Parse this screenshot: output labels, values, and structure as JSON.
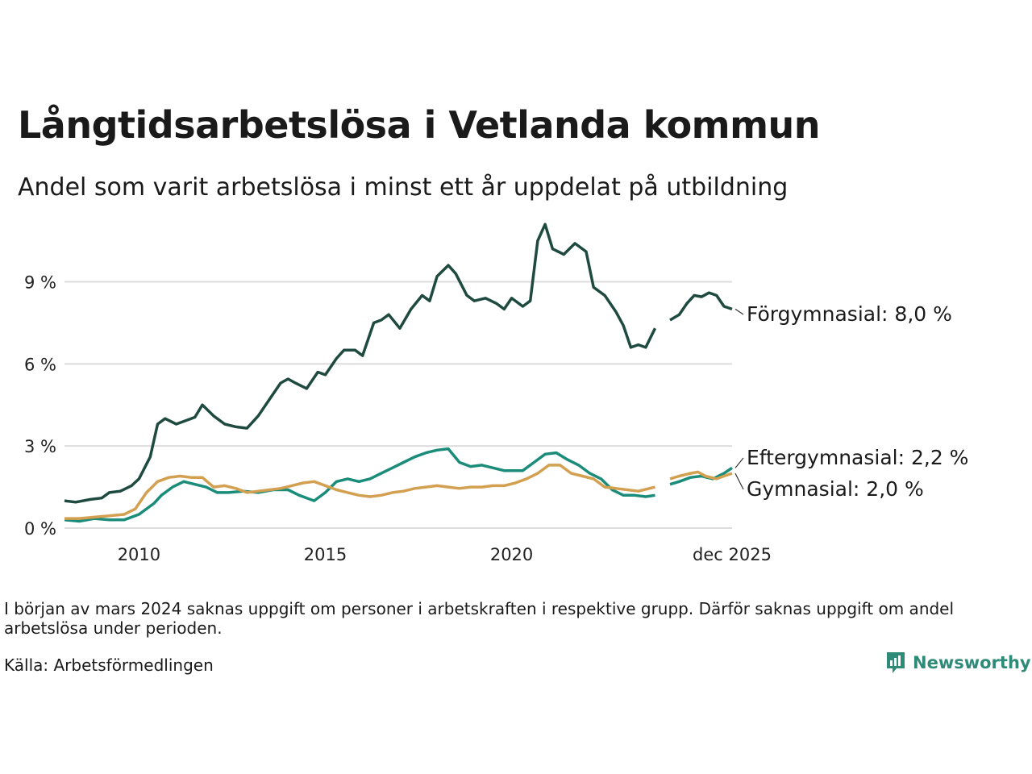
{
  "title": "Långtidsarbetslösa i Vetlanda kommun",
  "subtitle": "Andel som varit arbetslösa i minst ett år uppdelat på utbildning",
  "note": "I början av mars 2024 saknas uppgift om personer i arbetskraften i respektive grupp. Därför saknas uppgift om andel arbetslösa under perioden.",
  "source": "Källa: Arbetsförmedlingen",
  "brand": {
    "name": "Newsworthy",
    "icon": "newsworthy-logo-icon",
    "color": "#2e8b77"
  },
  "chart_data": {
    "type": "line",
    "title": "Långtidsarbetslösa i Vetlanda kommun",
    "xlabel": "",
    "ylabel": "",
    "xlim": [
      2008.0,
      2025.917
    ],
    "ylim": [
      0,
      11.4
    ],
    "grid": true,
    "yticks": [
      {
        "value": 0,
        "label": "0 %"
      },
      {
        "value": 3,
        "label": "3 %"
      },
      {
        "value": 6,
        "label": "6 %"
      },
      {
        "value": 9,
        "label": "9 %"
      }
    ],
    "xticks": [
      {
        "value": 2010,
        "label": "2010"
      },
      {
        "value": 2015,
        "label": "2015"
      },
      {
        "value": 2020,
        "label": "2020"
      },
      {
        "value": 2025.917,
        "label": "dec 2025"
      }
    ],
    "gap": [
      2023.85,
      2024.25
    ],
    "series": [
      {
        "name": "Förgymnasial",
        "label": "Förgymnasial: 8,0 %",
        "color": "#1f4a40",
        "points": [
          [
            2008.0,
            1.0
          ],
          [
            2008.3,
            0.95
          ],
          [
            2008.7,
            1.05
          ],
          [
            2009.0,
            1.1
          ],
          [
            2009.2,
            1.3
          ],
          [
            2009.5,
            1.35
          ],
          [
            2009.8,
            1.55
          ],
          [
            2010.0,
            1.8
          ],
          [
            2010.3,
            2.6
          ],
          [
            2010.5,
            3.8
          ],
          [
            2010.7,
            4.0
          ],
          [
            2011.0,
            3.8
          ],
          [
            2011.2,
            3.9
          ],
          [
            2011.5,
            4.05
          ],
          [
            2011.7,
            4.5
          ],
          [
            2012.0,
            4.1
          ],
          [
            2012.3,
            3.8
          ],
          [
            2012.6,
            3.7
          ],
          [
            2012.9,
            3.65
          ],
          [
            2013.2,
            4.1
          ],
          [
            2013.5,
            4.7
          ],
          [
            2013.8,
            5.3
          ],
          [
            2014.0,
            5.45
          ],
          [
            2014.2,
            5.3
          ],
          [
            2014.5,
            5.1
          ],
          [
            2014.8,
            5.7
          ],
          [
            2015.0,
            5.6
          ],
          [
            2015.3,
            6.2
          ],
          [
            2015.5,
            6.5
          ],
          [
            2015.8,
            6.5
          ],
          [
            2016.0,
            6.3
          ],
          [
            2016.3,
            7.5
          ],
          [
            2016.5,
            7.6
          ],
          [
            2016.7,
            7.8
          ],
          [
            2017.0,
            7.3
          ],
          [
            2017.3,
            8.0
          ],
          [
            2017.6,
            8.5
          ],
          [
            2017.8,
            8.3
          ],
          [
            2018.0,
            9.2
          ],
          [
            2018.3,
            9.6
          ],
          [
            2018.5,
            9.3
          ],
          [
            2018.8,
            8.5
          ],
          [
            2019.0,
            8.3
          ],
          [
            2019.3,
            8.4
          ],
          [
            2019.6,
            8.2
          ],
          [
            2019.8,
            8.0
          ],
          [
            2020.0,
            8.4
          ],
          [
            2020.3,
            8.1
          ],
          [
            2020.5,
            8.3
          ],
          [
            2020.7,
            10.5
          ],
          [
            2020.9,
            11.1
          ],
          [
            2021.1,
            10.2
          ],
          [
            2021.4,
            10.0
          ],
          [
            2021.7,
            10.4
          ],
          [
            2022.0,
            10.1
          ],
          [
            2022.2,
            8.8
          ],
          [
            2022.5,
            8.5
          ],
          [
            2022.8,
            7.9
          ],
          [
            2023.0,
            7.4
          ],
          [
            2023.2,
            6.6
          ],
          [
            2023.4,
            6.7
          ],
          [
            2023.6,
            6.6
          ],
          [
            2023.85,
            7.3
          ],
          [
            2024.25,
            7.6
          ],
          [
            2024.5,
            7.8
          ],
          [
            2024.7,
            8.2
          ],
          [
            2024.9,
            8.5
          ],
          [
            2025.1,
            8.45
          ],
          [
            2025.3,
            8.6
          ],
          [
            2025.5,
            8.5
          ],
          [
            2025.7,
            8.1
          ],
          [
            2025.917,
            8.0
          ]
        ]
      },
      {
        "name": "Eftergymnasial",
        "label": "Eftergymnasial: 2,2 %",
        "color": "#1a8c79",
        "points": [
          [
            2008.0,
            0.3
          ],
          [
            2008.4,
            0.25
          ],
          [
            2008.8,
            0.35
          ],
          [
            2009.2,
            0.3
          ],
          [
            2009.6,
            0.3
          ],
          [
            2010.0,
            0.5
          ],
          [
            2010.4,
            0.9
          ],
          [
            2010.6,
            1.2
          ],
          [
            2010.9,
            1.5
          ],
          [
            2011.2,
            1.7
          ],
          [
            2011.5,
            1.6
          ],
          [
            2011.8,
            1.5
          ],
          [
            2012.1,
            1.3
          ],
          [
            2012.4,
            1.3
          ],
          [
            2012.8,
            1.35
          ],
          [
            2013.2,
            1.3
          ],
          [
            2013.6,
            1.4
          ],
          [
            2014.0,
            1.4
          ],
          [
            2014.3,
            1.2
          ],
          [
            2014.7,
            1.0
          ],
          [
            2015.0,
            1.3
          ],
          [
            2015.3,
            1.7
          ],
          [
            2015.6,
            1.8
          ],
          [
            2015.9,
            1.7
          ],
          [
            2016.2,
            1.8
          ],
          [
            2016.5,
            2.0
          ],
          [
            2016.8,
            2.2
          ],
          [
            2017.1,
            2.4
          ],
          [
            2017.4,
            2.6
          ],
          [
            2017.7,
            2.75
          ],
          [
            2018.0,
            2.85
          ],
          [
            2018.3,
            2.9
          ],
          [
            2018.6,
            2.4
          ],
          [
            2018.9,
            2.25
          ],
          [
            2019.2,
            2.3
          ],
          [
            2019.5,
            2.2
          ],
          [
            2019.8,
            2.1
          ],
          [
            2020.0,
            2.1
          ],
          [
            2020.3,
            2.1
          ],
          [
            2020.6,
            2.4
          ],
          [
            2020.9,
            2.7
          ],
          [
            2021.2,
            2.75
          ],
          [
            2021.5,
            2.5
          ],
          [
            2021.8,
            2.3
          ],
          [
            2022.1,
            2.0
          ],
          [
            2022.4,
            1.8
          ],
          [
            2022.7,
            1.4
          ],
          [
            2023.0,
            1.2
          ],
          [
            2023.3,
            1.2
          ],
          [
            2023.6,
            1.15
          ],
          [
            2023.85,
            1.2
          ],
          [
            2024.25,
            1.6
          ],
          [
            2024.5,
            1.7
          ],
          [
            2024.8,
            1.85
          ],
          [
            2025.1,
            1.9
          ],
          [
            2025.4,
            1.8
          ],
          [
            2025.7,
            2.0
          ],
          [
            2025.917,
            2.2
          ]
        ]
      },
      {
        "name": "Gymnasial",
        "label": "Gymnasial: 2,0 %",
        "color": "#d2a050",
        "points": [
          [
            2008.0,
            0.35
          ],
          [
            2008.4,
            0.35
          ],
          [
            2008.8,
            0.4
          ],
          [
            2009.2,
            0.45
          ],
          [
            2009.6,
            0.5
          ],
          [
            2009.9,
            0.7
          ],
          [
            2010.2,
            1.3
          ],
          [
            2010.5,
            1.7
          ],
          [
            2010.8,
            1.85
          ],
          [
            2011.1,
            1.9
          ],
          [
            2011.4,
            1.85
          ],
          [
            2011.7,
            1.85
          ],
          [
            2012.0,
            1.5
          ],
          [
            2012.3,
            1.55
          ],
          [
            2012.6,
            1.45
          ],
          [
            2012.9,
            1.3
          ],
          [
            2013.2,
            1.35
          ],
          [
            2013.5,
            1.4
          ],
          [
            2013.8,
            1.45
          ],
          [
            2014.1,
            1.55
          ],
          [
            2014.4,
            1.65
          ],
          [
            2014.7,
            1.7
          ],
          [
            2015.0,
            1.55
          ],
          [
            2015.3,
            1.4
          ],
          [
            2015.6,
            1.3
          ],
          [
            2015.9,
            1.2
          ],
          [
            2016.2,
            1.15
          ],
          [
            2016.5,
            1.2
          ],
          [
            2016.8,
            1.3
          ],
          [
            2017.1,
            1.35
          ],
          [
            2017.4,
            1.45
          ],
          [
            2017.7,
            1.5
          ],
          [
            2018.0,
            1.55
          ],
          [
            2018.3,
            1.5
          ],
          [
            2018.6,
            1.45
          ],
          [
            2018.9,
            1.5
          ],
          [
            2019.2,
            1.5
          ],
          [
            2019.5,
            1.55
          ],
          [
            2019.8,
            1.55
          ],
          [
            2020.1,
            1.65
          ],
          [
            2020.4,
            1.8
          ],
          [
            2020.7,
            2.0
          ],
          [
            2021.0,
            2.3
          ],
          [
            2021.3,
            2.3
          ],
          [
            2021.6,
            2.0
          ],
          [
            2021.9,
            1.9
          ],
          [
            2022.2,
            1.8
          ],
          [
            2022.5,
            1.5
          ],
          [
            2022.8,
            1.45
          ],
          [
            2023.1,
            1.4
          ],
          [
            2023.4,
            1.35
          ],
          [
            2023.85,
            1.5
          ],
          [
            2024.25,
            1.8
          ],
          [
            2024.5,
            1.9
          ],
          [
            2024.8,
            2.0
          ],
          [
            2025.0,
            2.05
          ],
          [
            2025.2,
            1.9
          ],
          [
            2025.5,
            1.8
          ],
          [
            2025.7,
            1.9
          ],
          [
            2025.917,
            2.0
          ]
        ]
      }
    ]
  }
}
